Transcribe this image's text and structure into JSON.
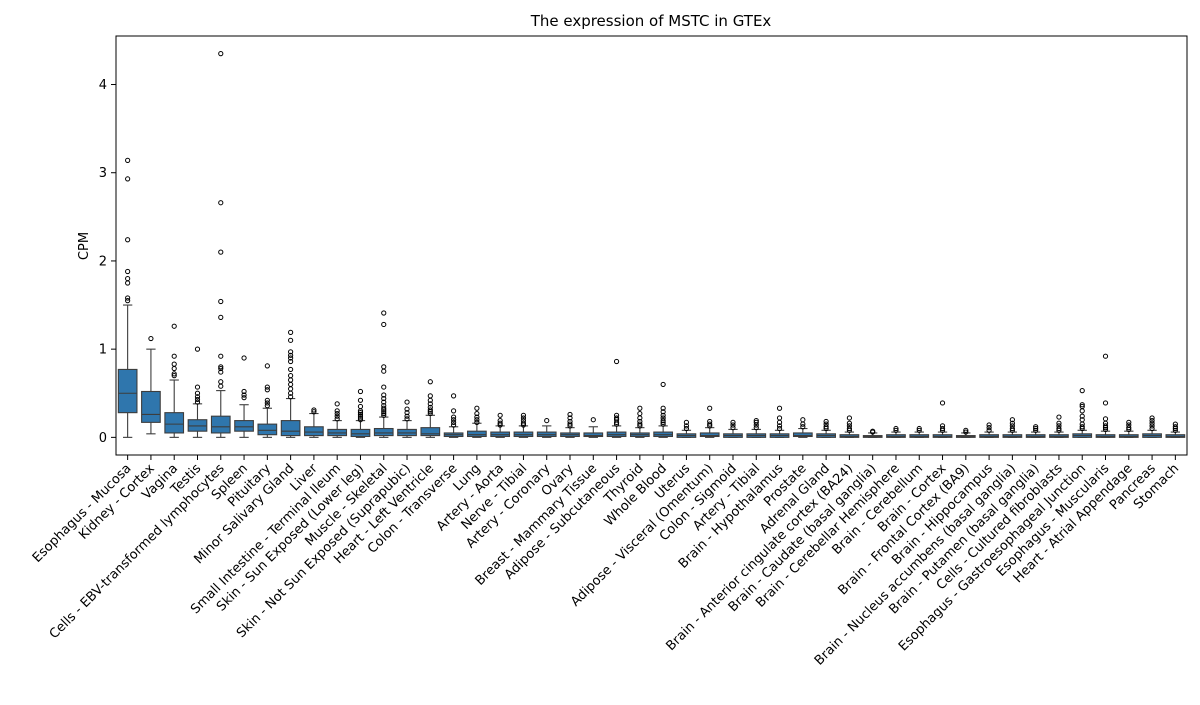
{
  "chart_data": {
    "type": "box",
    "title": "The expression of MSTC in GTEx",
    "xlabel": "",
    "ylabel": "CPM",
    "ylim": [
      -0.2,
      4.55
    ],
    "yticks": [
      0,
      1,
      2,
      3,
      4
    ],
    "grid": false,
    "box_color": "#2f76ad",
    "categories": [
      "Esophagus - Mucosa",
      "Kidney - Cortex",
      "Vagina",
      "Testis",
      "Cells - EBV-transformed lymphocytes",
      "Spleen",
      "Pituitary",
      "Minor Salivary Gland",
      "Liver",
      "Small Intestine - Terminal Ileum",
      "Skin - Sun Exposed (Lower leg)",
      "Muscle - Skeletal",
      "Skin - Not Sun Exposed (Suprapubic)",
      "Heart - Left Ventricle",
      "Colon - Transverse",
      "Lung",
      "Artery - Aorta",
      "Nerve - Tibial",
      "Artery - Coronary",
      "Ovary",
      "Breast - Mammary Tissue",
      "Adipose - Subcutaneous",
      "Thyroid",
      "Whole Blood",
      "Uterus",
      "Adipose - Visceral (Omentum)",
      "Colon - Sigmoid",
      "Artery - Tibial",
      "Brain - Hypothalamus",
      "Prostate",
      "Adrenal Gland",
      "Brain - Anterior cingulate cortex (BA24)",
      "Brain - Caudate (basal ganglia)",
      "Brain - Cerebellar Hemisphere",
      "Brain - Cerebellum",
      "Brain - Cortex",
      "Brain - Frontal Cortex (BA9)",
      "Brain - Hippocampus",
      "Brain - Nucleus accumbens (basal ganglia)",
      "Brain - Putamen (basal ganglia)",
      "Cells - Cultured fibroblasts",
      "Esophagus - Gastroesophageal Junction",
      "Esophagus - Muscularis",
      "Heart - Atrial Appendage",
      "Pancreas",
      "Stomach"
    ],
    "boxes": [
      {
        "q1": 0.28,
        "median": 0.5,
        "q3": 0.77,
        "whislo": 0.0,
        "whishi": 1.5,
        "fliers": [
          1.55,
          1.58,
          1.75,
          1.8,
          1.88,
          2.24,
          2.93,
          3.14
        ]
      },
      {
        "q1": 0.17,
        "median": 0.26,
        "q3": 0.52,
        "whislo": 0.04,
        "whishi": 1.0,
        "fliers": [
          1.12
        ]
      },
      {
        "q1": 0.05,
        "median": 0.15,
        "q3": 0.28,
        "whislo": 0.0,
        "whishi": 0.65,
        "fliers": [
          0.7,
          0.72,
          0.78,
          0.83,
          0.92,
          1.26
        ]
      },
      {
        "q1": 0.07,
        "median": 0.13,
        "q3": 0.2,
        "whislo": 0.0,
        "whishi": 0.38,
        "fliers": [
          0.4,
          0.43,
          0.46,
          0.5,
          0.57,
          1.0
        ]
      },
      {
        "q1": 0.05,
        "median": 0.12,
        "q3": 0.24,
        "whislo": 0.0,
        "whishi": 0.53,
        "fliers": [
          0.58,
          0.63,
          0.74,
          0.78,
          0.8,
          0.92,
          1.36,
          1.54,
          2.1,
          2.66,
          4.35
        ]
      },
      {
        "q1": 0.07,
        "median": 0.12,
        "q3": 0.19,
        "whislo": 0.0,
        "whishi": 0.37,
        "fliers": [
          0.45,
          0.48,
          0.52,
          0.9
        ]
      },
      {
        "q1": 0.03,
        "median": 0.08,
        "q3": 0.15,
        "whislo": 0.0,
        "whishi": 0.33,
        "fliers": [
          0.36,
          0.39,
          0.42,
          0.54,
          0.57,
          0.81
        ]
      },
      {
        "q1": 0.02,
        "median": 0.07,
        "q3": 0.19,
        "whislo": 0.0,
        "whishi": 0.44,
        "fliers": [
          0.46,
          0.5,
          0.55,
          0.6,
          0.65,
          0.7,
          0.77,
          0.86,
          0.9,
          0.93,
          0.97,
          1.1,
          1.19
        ]
      },
      {
        "q1": 0.02,
        "median": 0.06,
        "q3": 0.12,
        "whislo": 0.0,
        "whishi": 0.27,
        "fliers": [
          0.29,
          0.31
        ]
      },
      {
        "q1": 0.02,
        "median": 0.05,
        "q3": 0.09,
        "whislo": 0.0,
        "whishi": 0.19,
        "fliers": [
          0.21,
          0.24,
          0.27,
          0.3,
          0.38
        ]
      },
      {
        "q1": 0.01,
        "median": 0.04,
        "q3": 0.09,
        "whislo": 0.0,
        "whishi": 0.19,
        "fliers": [
          0.2,
          0.22,
          0.24,
          0.26,
          0.28,
          0.3,
          0.35,
          0.42,
          0.52
        ]
      },
      {
        "q1": 0.02,
        "median": 0.05,
        "q3": 0.1,
        "whislo": 0.0,
        "whishi": 0.23,
        "fliers": [
          0.25,
          0.27,
          0.29,
          0.31,
          0.33,
          0.36,
          0.4,
          0.44,
          0.48,
          0.57,
          0.75,
          0.8,
          1.28,
          1.41
        ]
      },
      {
        "q1": 0.02,
        "median": 0.05,
        "q3": 0.09,
        "whislo": 0.0,
        "whishi": 0.19,
        "fliers": [
          0.21,
          0.24,
          0.28,
          0.32,
          0.4
        ]
      },
      {
        "q1": 0.02,
        "median": 0.04,
        "q3": 0.11,
        "whislo": 0.0,
        "whishi": 0.25,
        "fliers": [
          0.27,
          0.29,
          0.31,
          0.34,
          0.38,
          0.42,
          0.47,
          0.63
        ]
      },
      {
        "q1": 0.01,
        "median": 0.03,
        "q3": 0.05,
        "whislo": 0.0,
        "whishi": 0.12,
        "fliers": [
          0.14,
          0.17,
          0.2,
          0.23,
          0.3,
          0.47
        ]
      },
      {
        "q1": 0.01,
        "median": 0.03,
        "q3": 0.07,
        "whislo": 0.0,
        "whishi": 0.16,
        "fliers": [
          0.17,
          0.2,
          0.23,
          0.27,
          0.33
        ]
      },
      {
        "q1": 0.01,
        "median": 0.03,
        "q3": 0.06,
        "whislo": 0.0,
        "whishi": 0.13,
        "fliers": [
          0.14,
          0.16,
          0.19,
          0.25
        ]
      },
      {
        "q1": 0.01,
        "median": 0.03,
        "q3": 0.06,
        "whislo": 0.0,
        "whishi": 0.13,
        "fliers": [
          0.14,
          0.16,
          0.19,
          0.22,
          0.25
        ]
      },
      {
        "q1": 0.01,
        "median": 0.03,
        "q3": 0.06,
        "whislo": 0.0,
        "whishi": 0.13,
        "fliers": [
          0.19
        ]
      },
      {
        "q1": 0.01,
        "median": 0.03,
        "q3": 0.05,
        "whislo": 0.0,
        "whishi": 0.11,
        "fliers": [
          0.13,
          0.15,
          0.18,
          0.22,
          0.26
        ]
      },
      {
        "q1": 0.01,
        "median": 0.02,
        "q3": 0.05,
        "whislo": 0.0,
        "whishi": 0.12,
        "fliers": [
          0.2
        ]
      },
      {
        "q1": 0.01,
        "median": 0.03,
        "q3": 0.06,
        "whislo": 0.0,
        "whishi": 0.13,
        "fliers": [
          0.15,
          0.17,
          0.2,
          0.22,
          0.25,
          0.86
        ]
      },
      {
        "q1": 0.01,
        "median": 0.03,
        "q3": 0.05,
        "whislo": 0.0,
        "whishi": 0.11,
        "fliers": [
          0.13,
          0.15,
          0.18,
          0.22,
          0.27,
          0.33
        ]
      },
      {
        "q1": 0.01,
        "median": 0.03,
        "q3": 0.06,
        "whislo": 0.0,
        "whishi": 0.13,
        "fliers": [
          0.15,
          0.17,
          0.19,
          0.22,
          0.25,
          0.29,
          0.33,
          0.6
        ]
      },
      {
        "q1": 0.0,
        "median": 0.02,
        "q3": 0.04,
        "whislo": 0.0,
        "whishi": 0.08,
        "fliers": [
          0.1,
          0.13,
          0.17
        ]
      },
      {
        "q1": 0.01,
        "median": 0.02,
        "q3": 0.05,
        "whislo": 0.0,
        "whishi": 0.11,
        "fliers": [
          0.13,
          0.15,
          0.18,
          0.33
        ]
      },
      {
        "q1": 0.0,
        "median": 0.02,
        "q3": 0.04,
        "whislo": 0.0,
        "whishi": 0.09,
        "fliers": [
          0.11,
          0.14,
          0.17
        ]
      },
      {
        "q1": 0.0,
        "median": 0.02,
        "q3": 0.04,
        "whislo": 0.0,
        "whishi": 0.09,
        "fliers": [
          0.11,
          0.14,
          0.17,
          0.19
        ]
      },
      {
        "q1": 0.0,
        "median": 0.02,
        "q3": 0.04,
        "whislo": 0.0,
        "whishi": 0.08,
        "fliers": [
          0.1,
          0.13,
          0.17,
          0.22,
          0.33
        ]
      },
      {
        "q1": 0.01,
        "median": 0.02,
        "q3": 0.05,
        "whislo": 0.0,
        "whishi": 0.1,
        "fliers": [
          0.12,
          0.15,
          0.2
        ]
      },
      {
        "q1": 0.0,
        "median": 0.02,
        "q3": 0.04,
        "whislo": 0.0,
        "whishi": 0.08,
        "fliers": [
          0.1,
          0.12,
          0.15,
          0.18
        ]
      },
      {
        "q1": 0.0,
        "median": 0.01,
        "q3": 0.03,
        "whislo": 0.0,
        "whishi": 0.06,
        "fliers": [
          0.08,
          0.1,
          0.13,
          0.16,
          0.22
        ]
      },
      {
        "q1": 0.0,
        "median": 0.01,
        "q3": 0.02,
        "whislo": 0.0,
        "whishi": 0.05,
        "fliers": [
          0.06,
          0.07
        ]
      },
      {
        "q1": 0.0,
        "median": 0.01,
        "q3": 0.03,
        "whislo": 0.0,
        "whishi": 0.06,
        "fliers": [
          0.08,
          0.1
        ]
      },
      {
        "q1": 0.0,
        "median": 0.01,
        "q3": 0.03,
        "whislo": 0.0,
        "whishi": 0.06,
        "fliers": [
          0.08,
          0.1
        ]
      },
      {
        "q1": 0.0,
        "median": 0.01,
        "q3": 0.03,
        "whislo": 0.0,
        "whishi": 0.06,
        "fliers": [
          0.08,
          0.1,
          0.13,
          0.39
        ]
      },
      {
        "q1": 0.0,
        "median": 0.01,
        "q3": 0.02,
        "whislo": 0.0,
        "whishi": 0.05,
        "fliers": [
          0.06,
          0.08
        ]
      },
      {
        "q1": 0.0,
        "median": 0.01,
        "q3": 0.03,
        "whislo": 0.0,
        "whishi": 0.06,
        "fliers": [
          0.08,
          0.11,
          0.14
        ]
      },
      {
        "q1": 0.0,
        "median": 0.01,
        "q3": 0.03,
        "whislo": 0.0,
        "whishi": 0.06,
        "fliers": [
          0.08,
          0.1,
          0.13,
          0.16,
          0.2
        ]
      },
      {
        "q1": 0.0,
        "median": 0.01,
        "q3": 0.03,
        "whislo": 0.0,
        "whishi": 0.06,
        "fliers": [
          0.08,
          0.1,
          0.12
        ]
      },
      {
        "q1": 0.0,
        "median": 0.01,
        "q3": 0.03,
        "whislo": 0.0,
        "whishi": 0.06,
        "fliers": [
          0.08,
          0.1,
          0.13,
          0.16,
          0.23
        ]
      },
      {
        "q1": 0.0,
        "median": 0.02,
        "q3": 0.04,
        "whislo": 0.0,
        "whishi": 0.08,
        "fliers": [
          0.1,
          0.12,
          0.15,
          0.2,
          0.24,
          0.3,
          0.35,
          0.37,
          0.53
        ]
      },
      {
        "q1": 0.0,
        "median": 0.01,
        "q3": 0.03,
        "whislo": 0.0,
        "whishi": 0.07,
        "fliers": [
          0.09,
          0.11,
          0.13,
          0.16,
          0.21,
          0.39,
          0.92
        ]
      },
      {
        "q1": 0.0,
        "median": 0.01,
        "q3": 0.03,
        "whislo": 0.0,
        "whishi": 0.07,
        "fliers": [
          0.09,
          0.11,
          0.14,
          0.17
        ]
      },
      {
        "q1": 0.0,
        "median": 0.02,
        "q3": 0.04,
        "whislo": 0.0,
        "whishi": 0.08,
        "fliers": [
          0.1,
          0.13,
          0.16,
          0.19,
          0.22
        ]
      },
      {
        "q1": 0.0,
        "median": 0.01,
        "q3": 0.03,
        "whislo": 0.0,
        "whishi": 0.06,
        "fliers": [
          0.08,
          0.1,
          0.12,
          0.15
        ]
      }
    ]
  }
}
